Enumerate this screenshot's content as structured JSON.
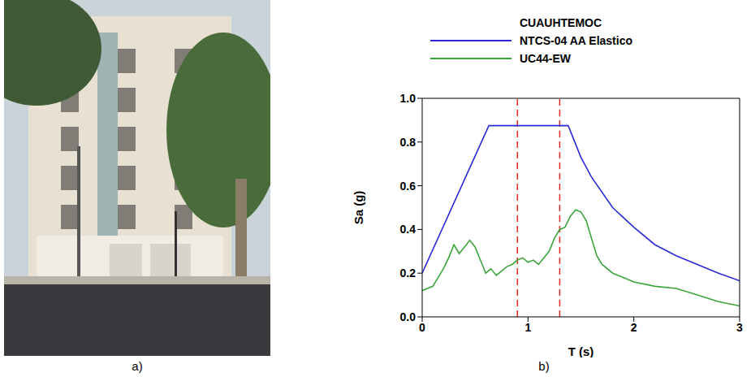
{
  "chart_data": {
    "type": "line",
    "title": "CUAUHTEMOC",
    "x_label": "T (s)",
    "y_label": "Sa (g)",
    "xlim": [
      0,
      3
    ],
    "xticks": [
      0,
      1,
      2,
      3
    ],
    "ylim": [
      0,
      1
    ],
    "yticks": [
      {
        "value": 0,
        "label": "0.0"
      },
      {
        "value": 0.2,
        "label": "0.2"
      },
      {
        "value": 0.4,
        "label": "0.4"
      },
      {
        "value": 0.6,
        "label": "0.6"
      },
      {
        "value": 0.8,
        "label": "0.8"
      },
      {
        "value": 1,
        "label": "1.0"
      }
    ],
    "grid": false,
    "legend": "top",
    "series": [
      {
        "name": "NTCS-04 AA Elastico",
        "color": "#2a2ad8",
        "x": [
          0,
          0.63,
          1.38,
          1.5,
          1.6,
          1.8,
          2.0,
          2.2,
          2.4,
          2.6,
          2.8,
          3.0
        ],
        "values": [
          0.2,
          0.875,
          0.875,
          0.73,
          0.64,
          0.5,
          0.41,
          0.33,
          0.28,
          0.24,
          0.2,
          0.165
        ]
      },
      {
        "name": "UC44-EW",
        "color": "#3aa53a",
        "x": [
          0,
          0.05,
          0.1,
          0.15,
          0.2,
          0.25,
          0.3,
          0.35,
          0.4,
          0.45,
          0.5,
          0.55,
          0.6,
          0.65,
          0.7,
          0.75,
          0.8,
          0.85,
          0.9,
          0.95,
          1.0,
          1.05,
          1.1,
          1.15,
          1.2,
          1.25,
          1.3,
          1.35,
          1.4,
          1.45,
          1.5,
          1.55,
          1.6,
          1.65,
          1.7,
          1.8,
          1.9,
          2.0,
          2.2,
          2.4,
          2.6,
          2.8,
          3.0
        ],
        "values": [
          0.12,
          0.13,
          0.14,
          0.18,
          0.22,
          0.27,
          0.33,
          0.29,
          0.32,
          0.35,
          0.32,
          0.26,
          0.2,
          0.22,
          0.19,
          0.21,
          0.23,
          0.24,
          0.26,
          0.27,
          0.25,
          0.26,
          0.24,
          0.27,
          0.3,
          0.36,
          0.4,
          0.41,
          0.46,
          0.49,
          0.48,
          0.44,
          0.36,
          0.28,
          0.24,
          0.2,
          0.18,
          0.16,
          0.14,
          0.13,
          0.1,
          0.07,
          0.05
        ]
      }
    ],
    "vlines": {
      "x": [
        0.9,
        1.3
      ],
      "color": "#e0281e",
      "line_style": "dashed"
    }
  },
  "panel_labels": [
    "a)",
    "b)"
  ]
}
